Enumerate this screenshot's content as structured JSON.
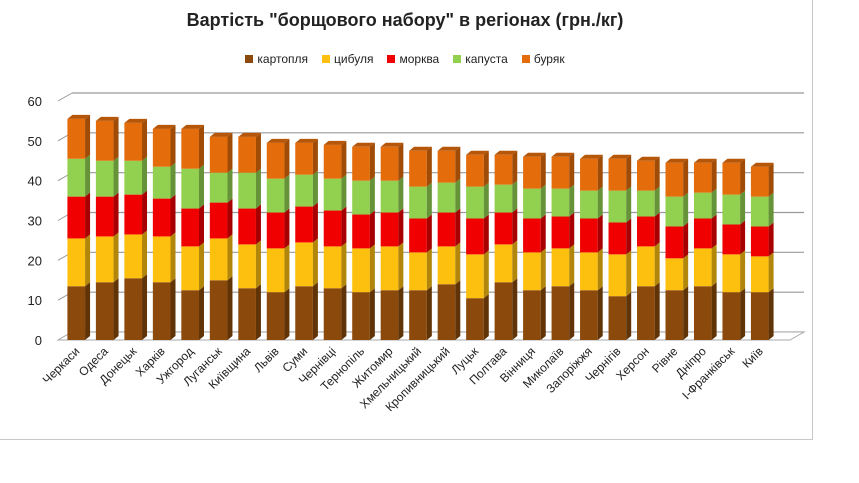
{
  "chart_data": {
    "type": "bar",
    "stacked": true,
    "title": "Вартість \"борщового набору\" в регіонах (грн./кг)",
    "xlabel": "",
    "ylabel": "",
    "ylim": [
      0,
      60
    ],
    "yticks": [
      "0",
      "10",
      "20",
      "30",
      "40",
      "50",
      "60"
    ],
    "grid": true,
    "legend_position": "top",
    "categories": [
      "Черкаси",
      "Одеса",
      "Донецьк",
      "Харків",
      "Ужгород",
      "Луганськ",
      "Київщина",
      "Львів",
      "Суми",
      "Чернівці",
      "Тернопіль",
      "Житомир",
      "Хмельницький",
      "Кропивницький",
      "Луцьк",
      "Полтава",
      "Вінниця",
      "Миколаїв",
      "Запоріжжя",
      "Чернігів",
      "Херсон",
      "Рівне",
      "Дніпро",
      "І-Франківськ",
      "Київ"
    ],
    "series": [
      {
        "name": "картопля",
        "color": "#8B4A0B",
        "values": [
          13.5,
          14.5,
          15.5,
          14.5,
          12.5,
          15,
          13,
          12,
          13.5,
          13,
          12,
          12.5,
          12.5,
          14,
          10.5,
          14.5,
          12.5,
          13.5,
          12.5,
          11,
          13.5,
          12.5,
          13.5,
          12,
          12
        ]
      },
      {
        "name": "цибуля",
        "color": "#FDC00E",
        "values": [
          12,
          11.5,
          11,
          11.5,
          11,
          10.5,
          11,
          11,
          11,
          10.5,
          11,
          11,
          9.5,
          9.5,
          11,
          9.5,
          9.5,
          9.5,
          9.5,
          10.5,
          10,
          8,
          9.5,
          9.5,
          9
        ]
      },
      {
        "name": "морква",
        "color": "#F00000",
        "values": [
          10.5,
          10,
          10,
          9.5,
          9.5,
          9,
          9,
          9,
          9,
          9,
          8.5,
          8.5,
          8.5,
          8.5,
          9,
          8,
          8.5,
          8,
          8.5,
          8,
          7.5,
          8,
          7.5,
          7.5,
          7.5
        ]
      },
      {
        "name": "капуста",
        "color": "#92D050",
        "values": [
          9.5,
          9,
          8.5,
          8,
          10,
          7.5,
          9,
          8.5,
          8,
          8,
          8.5,
          8,
          8,
          7.5,
          8,
          7,
          7.5,
          7,
          7,
          8,
          6.5,
          7.5,
          6.5,
          7.5,
          7.5
        ]
      },
      {
        "name": "буряк",
        "color": "#E46C0A",
        "values": [
          10,
          10,
          9.5,
          9.5,
          10,
          9,
          9,
          9,
          8,
          8.5,
          8.5,
          8.5,
          9,
          8,
          8,
          7.5,
          8,
          8,
          8,
          8,
          7.5,
          8.5,
          7.5,
          8,
          7.5
        ]
      }
    ]
  }
}
